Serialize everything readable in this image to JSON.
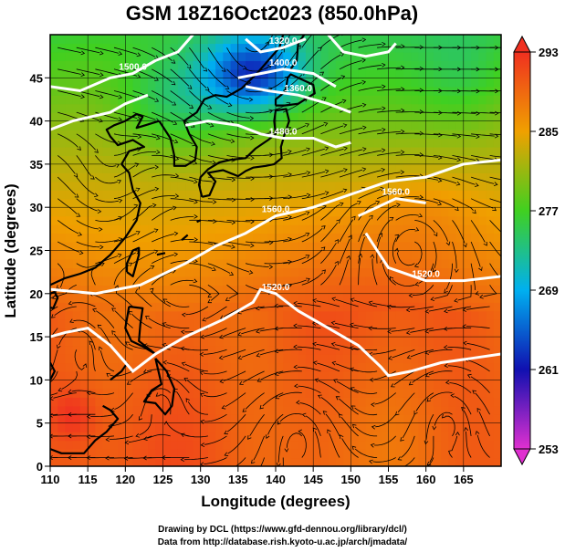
{
  "chart_data": {
    "type": "heatmap",
    "title": "GSM 18Z16Oct2023 (850.0hPa)",
    "xlabel": "Longitude (degrees)",
    "ylabel": "Latitude (degrees)",
    "xlim": [
      110,
      170
    ],
    "ylim": [
      0,
      50
    ],
    "xticks": [
      110,
      115,
      120,
      125,
      130,
      135,
      140,
      145,
      150,
      155,
      160,
      165
    ],
    "yticks": [
      0,
      5,
      10,
      15,
      20,
      25,
      30,
      35,
      40,
      45
    ],
    "grid": true,
    "colorbar": {
      "min": 253,
      "max": 293,
      "ticks": [
        253,
        261,
        269,
        277,
        285,
        293
      ],
      "placement": "right"
    },
    "contours": [
      {
        "label": "1520.0",
        "points": [
          [
            110,
            15
          ],
          [
            112,
            15.5
          ],
          [
            115,
            16
          ],
          [
            118,
            14
          ],
          [
            121,
            11
          ],
          [
            124,
            13
          ],
          [
            128,
            15
          ],
          [
            133,
            17
          ],
          [
            137,
            19
          ],
          [
            138,
            20.5
          ],
          [
            140,
            20
          ],
          [
            143,
            18
          ],
          [
            147,
            16
          ],
          [
            151,
            14
          ],
          [
            154,
            11.5
          ],
          [
            155,
            10.5
          ],
          [
            158,
            11
          ],
          [
            162,
            12
          ],
          [
            166,
            12.5
          ],
          [
            170,
            13
          ]
        ]
      },
      {
        "label": "1560.0",
        "points": [
          [
            110,
            20.5
          ],
          [
            116,
            20
          ],
          [
            122,
            21
          ],
          [
            128,
            23.5
          ],
          [
            132,
            25.5
          ],
          [
            136,
            27
          ],
          [
            140,
            29
          ],
          [
            145,
            30
          ],
          [
            150,
            31.5
          ],
          [
            155,
            33
          ],
          [
            160,
            33.5
          ],
          [
            165,
            35
          ],
          [
            170,
            35.5
          ]
        ]
      },
      {
        "label": "1520.0",
        "points": [
          [
            152,
            27
          ],
          [
            155,
            23
          ],
          [
            160,
            21.5
          ],
          [
            165,
            21.5
          ],
          [
            170,
            22
          ]
        ]
      },
      {
        "label": "1560.0",
        "points": [
          [
            151,
            29
          ],
          [
            156,
            31
          ],
          [
            160,
            30.5
          ]
        ]
      },
      {
        "label": "1480.0",
        "points": [
          [
            128,
            39.5
          ],
          [
            131,
            40
          ],
          [
            135,
            39.5
          ],
          [
            138,
            38.5
          ],
          [
            141,
            38
          ],
          [
            145,
            38
          ],
          [
            148,
            37
          ],
          [
            150,
            37.5
          ]
        ]
      },
      {
        "label": "1360.0",
        "points": [
          [
            136,
            44
          ],
          [
            139,
            43.5
          ],
          [
            143,
            43
          ],
          [
            147,
            42
          ],
          [
            150,
            41
          ]
        ]
      },
      {
        "label": "1400.0",
        "points": [
          [
            135,
            45
          ],
          [
            138,
            45.5
          ],
          [
            141,
            46
          ],
          [
            145,
            45.5
          ],
          [
            148,
            44
          ]
        ]
      },
      {
        "label": "1320.0",
        "points": [
          [
            136,
            49.5
          ],
          [
            138,
            48
          ],
          [
            141,
            48.5
          ],
          [
            144,
            49.5
          ]
        ]
      },
      {
        "label": "",
        "points": [
          [
            110,
            39
          ],
          [
            113,
            40
          ],
          [
            118,
            41
          ],
          [
            120,
            42
          ],
          [
            123,
            43
          ]
        ]
      },
      {
        "label": "1500.0",
        "points": [
          [
            110,
            44
          ],
          [
            114,
            43.5
          ],
          [
            118,
            45
          ],
          [
            121,
            45.5
          ],
          [
            124,
            47
          ],
          [
            127,
            48
          ],
          [
            129,
            50
          ]
        ]
      },
      {
        "label": "",
        "points": [
          [
            147,
            50
          ],
          [
            149,
            48
          ],
          [
            152,
            47.5
          ],
          [
            155,
            48
          ],
          [
            156,
            49
          ]
        ]
      }
    ]
  }
}
